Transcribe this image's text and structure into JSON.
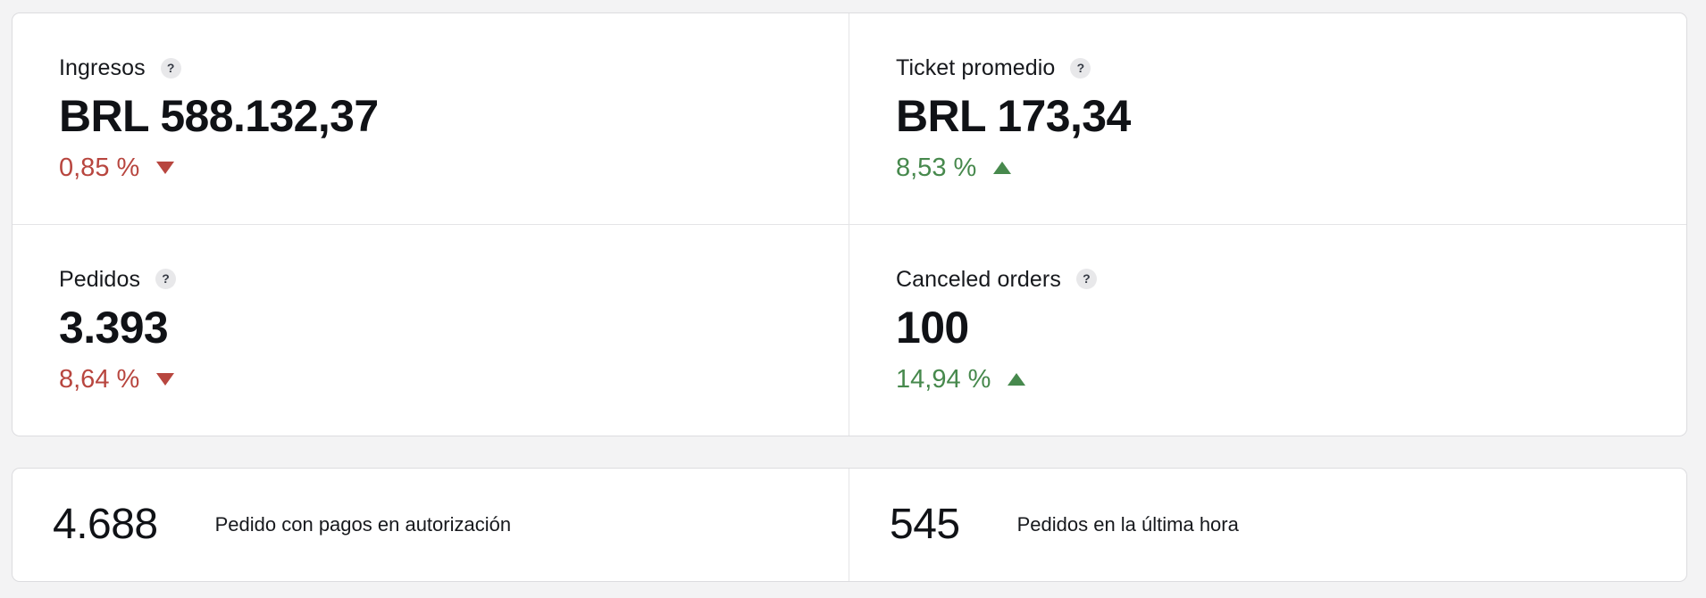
{
  "colors": {
    "background": "#f3f3f4",
    "card_background": "#ffffff",
    "card_border": "#dcdcdf",
    "divider": "#e4e4e6",
    "text_primary": "#101216",
    "negative_red": "#b8463f",
    "positive_green": "#47894d",
    "help_icon_background": "#e8e8ea",
    "help_icon_foreground": "#363b45"
  },
  "kpi_cards": [
    {
      "label": "Ingresos",
      "help_glyph": "?",
      "value": "BRL 588.132,37",
      "change": "0,85 %",
      "trend": "down"
    },
    {
      "label": "Ticket promedio",
      "help_glyph": "?",
      "value": "BRL 173,34",
      "change": "8,53 %",
      "trend": "up"
    },
    {
      "label": "Pedidos",
      "help_glyph": "?",
      "value": "3.393",
      "change": "8,64 %",
      "trend": "down"
    },
    {
      "label": "Canceled orders",
      "help_glyph": "?",
      "value": "100",
      "change": "14,94 %",
      "trend": "up"
    }
  ],
  "summary_cards": [
    {
      "value": "4.688",
      "label": "Pedido con pagos en autorización"
    },
    {
      "value": "545",
      "label": "Pedidos en la última hora"
    }
  ]
}
